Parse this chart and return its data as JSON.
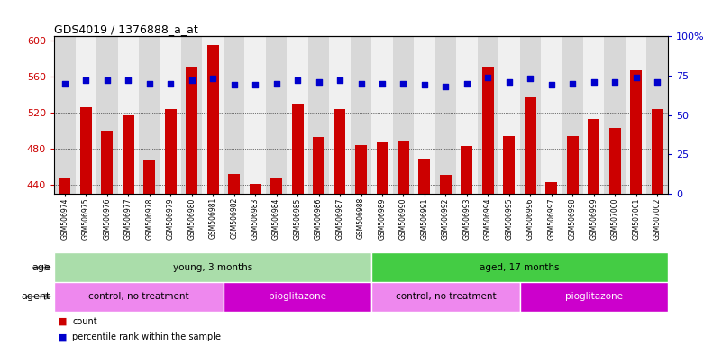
{
  "title": "GDS4019 / 1376888_a_at",
  "samples": [
    "GSM506974",
    "GSM506975",
    "GSM506976",
    "GSM506977",
    "GSM506978",
    "GSM506979",
    "GSM506980",
    "GSM506981",
    "GSM506982",
    "GSM506983",
    "GSM506984",
    "GSM506985",
    "GSM506986",
    "GSM506987",
    "GSM506988",
    "GSM506989",
    "GSM506990",
    "GSM506991",
    "GSM506992",
    "GSM506993",
    "GSM506994",
    "GSM506995",
    "GSM506996",
    "GSM506997",
    "GSM506998",
    "GSM506999",
    "GSM507000",
    "GSM507001",
    "GSM507002"
  ],
  "counts": [
    447,
    526,
    500,
    517,
    467,
    524,
    571,
    595,
    452,
    441,
    447,
    530,
    493,
    524,
    484,
    487,
    489,
    468,
    451,
    483,
    571,
    494,
    537,
    443,
    494,
    513,
    503,
    567,
    524
  ],
  "percentiles": [
    70,
    72,
    72,
    72,
    70,
    70,
    72,
    73,
    69,
    69,
    70,
    72,
    71,
    72,
    70,
    70,
    70,
    69,
    68,
    70,
    74,
    71,
    73,
    69,
    70,
    71,
    71,
    74,
    71
  ],
  "ylim_left": [
    430,
    605
  ],
  "ylim_right": [
    0,
    100
  ],
  "yticks_left": [
    440,
    480,
    520,
    560,
    600
  ],
  "yticks_right": [
    0,
    25,
    50,
    75,
    100
  ],
  "bar_color": "#cc0000",
  "dot_color": "#0000cc",
  "age_groups": [
    {
      "label": "young, 3 months",
      "start": 0,
      "end": 15,
      "color": "#aaddaa"
    },
    {
      "label": "aged, 17 months",
      "start": 15,
      "end": 29,
      "color": "#44cc44"
    }
  ],
  "agent_groups": [
    {
      "label": "control, no treatment",
      "start": 0,
      "end": 8,
      "color": "#ee88ee"
    },
    {
      "label": "pioglitazone",
      "start": 8,
      "end": 15,
      "color": "#cc00cc"
    },
    {
      "label": "control, no treatment",
      "start": 15,
      "end": 22,
      "color": "#ee88ee"
    },
    {
      "label": "pioglitazone",
      "start": 22,
      "end": 29,
      "color": "#cc00cc"
    }
  ],
  "bar_width": 0.55,
  "dot_size": 20,
  "font_size": 8,
  "title_font_size": 9,
  "tick_label_fontsize": 5.5,
  "annotation_fontsize": 7.5,
  "label_fontsize": 8
}
